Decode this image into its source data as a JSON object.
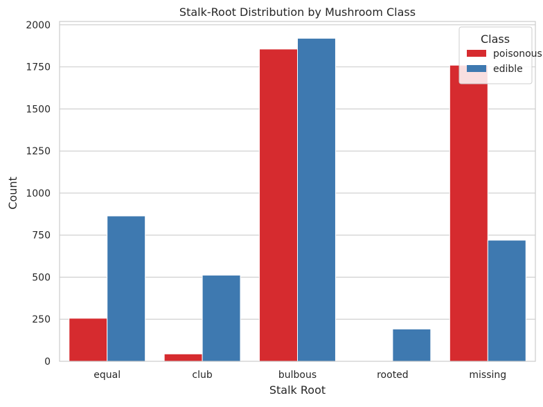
{
  "chart_data": {
    "type": "bar",
    "title": "Stalk-Root Distribution by Mushroom Class",
    "xlabel": "Stalk Root",
    "ylabel": "Count",
    "categories": [
      "equal",
      "club",
      "bulbous",
      "rooted",
      "missing"
    ],
    "series": [
      {
        "name": "poisonous",
        "color": "#d62b2f",
        "values": [
          256,
          44,
          1856,
          0,
          1760
        ]
      },
      {
        "name": "edible",
        "color": "#3e79b0",
        "values": [
          864,
          512,
          1920,
          192,
          720
        ]
      }
    ],
    "ylim": [
      0,
      2020
    ],
    "yticks": [
      0,
      250,
      500,
      750,
      1000,
      1250,
      1500,
      1750,
      2000
    ],
    "ytick_labels": [
      "0",
      "250",
      "500",
      "750",
      "1000",
      "1250",
      "1500",
      "1750",
      "2000"
    ],
    "grid": "horizontal",
    "legend": {
      "title": "Class",
      "placement": "top-right"
    }
  }
}
